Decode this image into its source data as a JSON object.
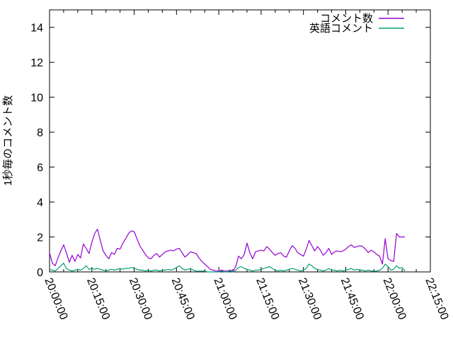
{
  "colors": {
    "background": "#ffffff",
    "axis": "#000000",
    "text": "#000000",
    "series1": "#9400d3",
    "series2": "#009e73"
  },
  "chart_data": {
    "type": "line",
    "title": "",
    "xlabel": "",
    "ylabel": "1秒毎のコメント数",
    "legend_position": "top-right-inside",
    "grid": false,
    "x_axis": {
      "start_time": "20:00:00",
      "end_time": "22:15:00",
      "major_step_minutes": 15,
      "minor_step_minutes": 5,
      "tick_labels": [
        "20:00:00",
        "20:15:00",
        "20:30:00",
        "20:45:00",
        "21:00:00",
        "21:15:00",
        "21:30:00",
        "21:45:00",
        "22:00:00",
        "22:15:00"
      ],
      "label_rotation_deg": 68
    },
    "y_axis": {
      "min": 0,
      "max": 15,
      "major_step": 2,
      "tick_labels": [
        "0",
        "2",
        "4",
        "6",
        "8",
        "10",
        "12",
        "14"
      ]
    },
    "x_sampling": {
      "start": "20:00:00",
      "step_seconds": 60,
      "points": 127
    },
    "series": [
      {
        "name": "コメント数",
        "color": "#9400d3",
        "values": [
          1.1,
          0.5,
          0.35,
          0.8,
          1.2,
          1.55,
          1.1,
          0.55,
          0.95,
          0.6,
          1.0,
          0.8,
          1.6,
          1.35,
          1.05,
          1.7,
          2.2,
          2.45,
          1.8,
          1.2,
          0.95,
          0.75,
          1.1,
          1.0,
          1.35,
          1.3,
          1.65,
          1.9,
          2.2,
          2.35,
          2.3,
          1.9,
          1.5,
          1.25,
          1.0,
          0.8,
          0.75,
          0.95,
          1.05,
          0.85,
          1.0,
          1.15,
          1.2,
          1.25,
          1.2,
          1.3,
          1.35,
          1.1,
          0.85,
          1.0,
          1.15,
          1.1,
          1.05,
          0.8,
          0.6,
          0.45,
          0.3,
          0.15,
          0.1,
          0.05,
          0.05,
          0.1,
          0.05,
          0.05,
          0.1,
          0.05,
          0.3,
          0.9,
          0.75,
          1.0,
          1.65,
          1.1,
          0.75,
          1.15,
          1.2,
          1.25,
          1.2,
          1.45,
          1.3,
          1.1,
          0.95,
          1.05,
          1.1,
          0.9,
          0.85,
          1.2,
          1.5,
          1.35,
          1.1,
          1.0,
          0.9,
          1.3,
          1.8,
          1.5,
          1.2,
          1.45,
          1.25,
          0.95,
          1.1,
          1.35,
          1.0,
          1.15,
          1.2,
          1.15,
          1.2,
          1.3,
          1.45,
          1.55,
          1.4,
          1.45,
          1.5,
          1.45,
          1.3,
          1.1,
          1.25,
          1.15,
          1.0,
          0.9,
          0.45,
          1.9,
          0.75,
          0.65,
          0.6,
          2.2,
          2.0,
          2.0,
          2.0
        ]
      },
      {
        "name": "英語コメント",
        "color": "#009e73",
        "values": [
          0.15,
          0.1,
          0.05,
          0.2,
          0.35,
          0.5,
          0.2,
          0.1,
          0.05,
          0.1,
          0.15,
          0.1,
          0.2,
          0.35,
          0.15,
          0.2,
          0.15,
          0.2,
          0.15,
          0.1,
          0.05,
          0.1,
          0.15,
          0.1,
          0.15,
          0.2,
          0.15,
          0.2,
          0.2,
          0.25,
          0.2,
          0.15,
          0.1,
          0.1,
          0.05,
          0.1,
          0.05,
          0.1,
          0.1,
          0.05,
          0.1,
          0.1,
          0.15,
          0.1,
          0.15,
          0.25,
          0.35,
          0.2,
          0.1,
          0.15,
          0.2,
          0.1,
          0.05,
          0.05,
          0.05,
          0.05,
          0,
          0,
          0,
          0,
          0,
          0.05,
          0,
          0,
          0.05,
          0,
          0.1,
          0.25,
          0.3,
          0.2,
          0.15,
          0.1,
          0.05,
          0.1,
          0.1,
          0.15,
          0.2,
          0.25,
          0.3,
          0.2,
          0.1,
          0.05,
          0.1,
          0.05,
          0.1,
          0.15,
          0.2,
          0.15,
          0.1,
          0.05,
          0.1,
          0.2,
          0.45,
          0.35,
          0.2,
          0.15,
          0.1,
          0.05,
          0.1,
          0.2,
          0.1,
          0.1,
          0.05,
          0.1,
          0.05,
          0.1,
          0.15,
          0.2,
          0.1,
          0.15,
          0.1,
          0.1,
          0.05,
          0.1,
          0.05,
          0.05,
          0.05,
          0.1,
          0.2,
          0.45,
          0.3,
          0.1,
          0.15,
          0.35,
          0.2,
          0.25,
          0.05
        ]
      }
    ]
  }
}
